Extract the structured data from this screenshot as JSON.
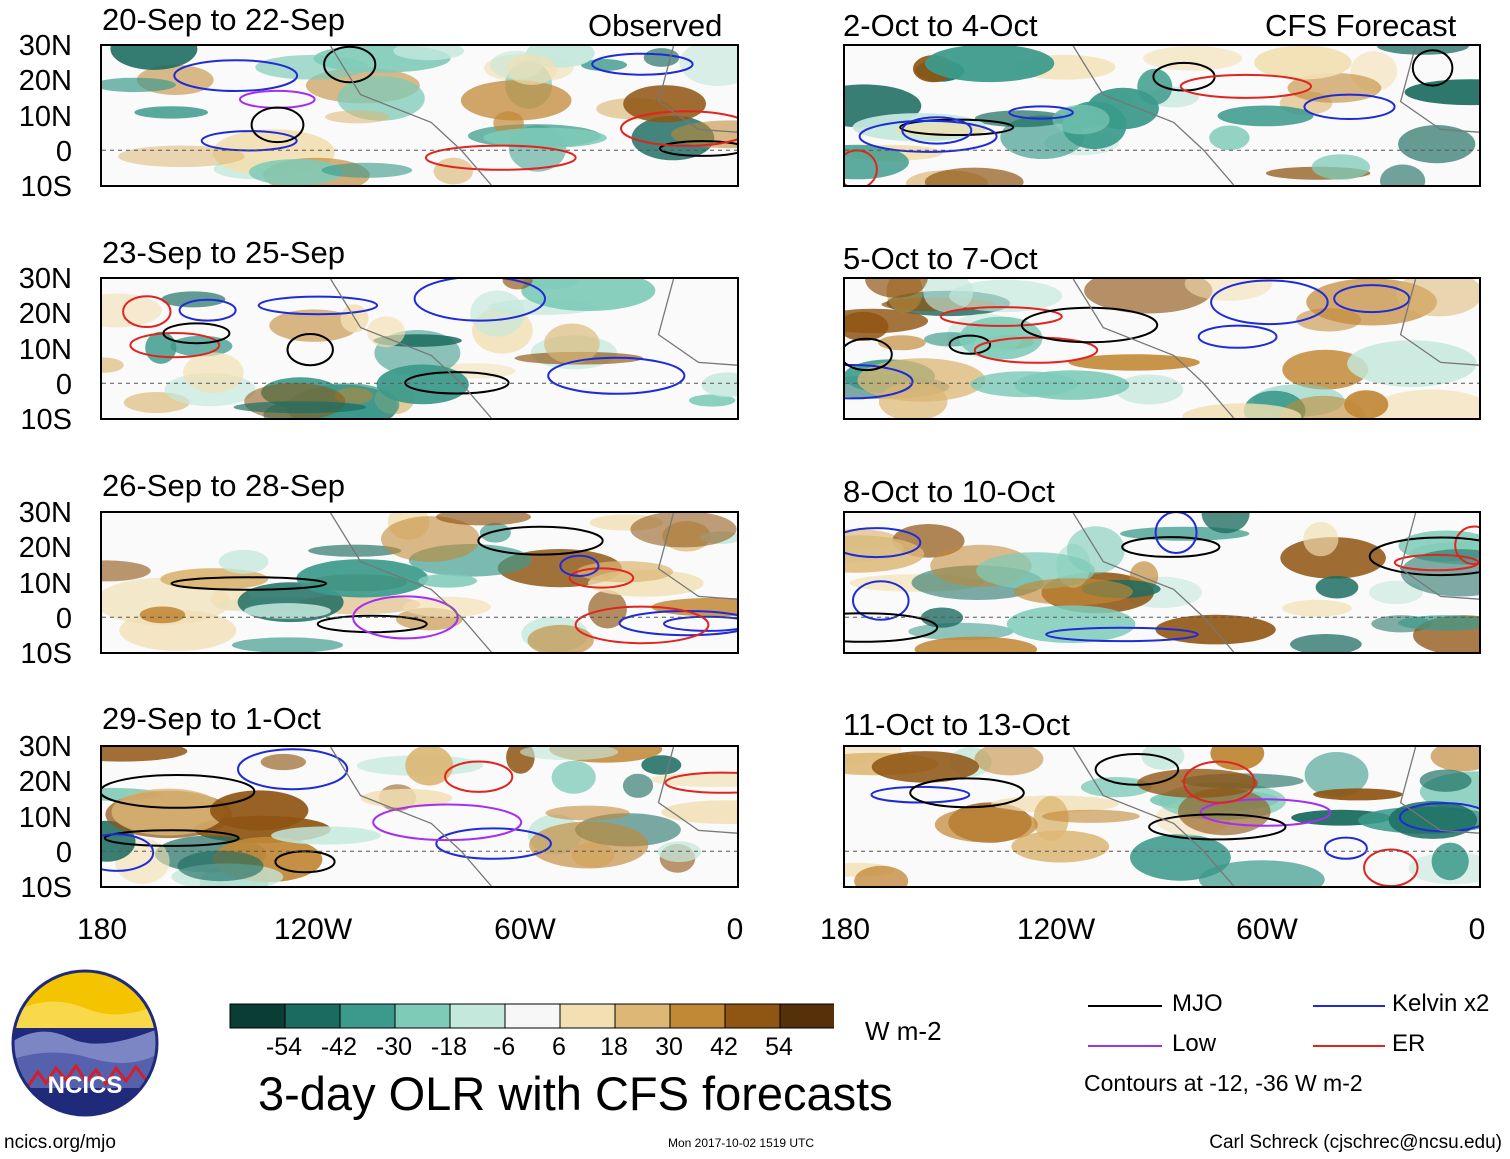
{
  "title": "3-day OLR with CFS forecasts",
  "units": "W m-2",
  "observed_tag": "Observed",
  "forecast_tag": "CFS Forecast",
  "lat_labels": [
    "30N",
    "20N",
    "10N",
    "0",
    "10S"
  ],
  "lon_labels": [
    "180",
    "120W",
    "60W",
    "0"
  ],
  "panels": {
    "observed": [
      "20-Sep to 22-Sep",
      "23-Sep to 25-Sep",
      "26-Sep to 28-Sep",
      "29-Sep to 1-Oct"
    ],
    "forecast": [
      "2-Oct to 4-Oct",
      "5-Oct to 7-Oct",
      "8-Oct to 10-Oct",
      "11-Oct to 13-Oct"
    ]
  },
  "colorbar": {
    "labels": [
      "-54",
      "-42",
      "-30",
      "-18",
      "-6",
      "6",
      "18",
      "30",
      "42",
      "54"
    ],
    "colors": [
      "#0a3d33",
      "#1b6b60",
      "#3b9a8b",
      "#7ecbb8",
      "#c4e8dc",
      "#f7f7f7",
      "#f2dfb2",
      "#dcb775",
      "#c18836",
      "#8f5513",
      "#553009"
    ]
  },
  "legend": {
    "items": [
      {
        "label": "MJO",
        "color": "#000000"
      },
      {
        "label": "Kelvin x2",
        "color": "#1f2bd6"
      },
      {
        "label": "Low",
        "color": "#a52ff0"
      },
      {
        "label": "ER",
        "color": "#e0241f"
      }
    ],
    "note": "Contours at -12, -36 W m-2"
  },
  "logo_text": "NCICS",
  "footer": {
    "left": "ncics.org/mjo",
    "center": "Mon 2017-10-02 1519 UTC",
    "right": "Carl Schreck (cjschrec@ncsu.edu)"
  }
}
